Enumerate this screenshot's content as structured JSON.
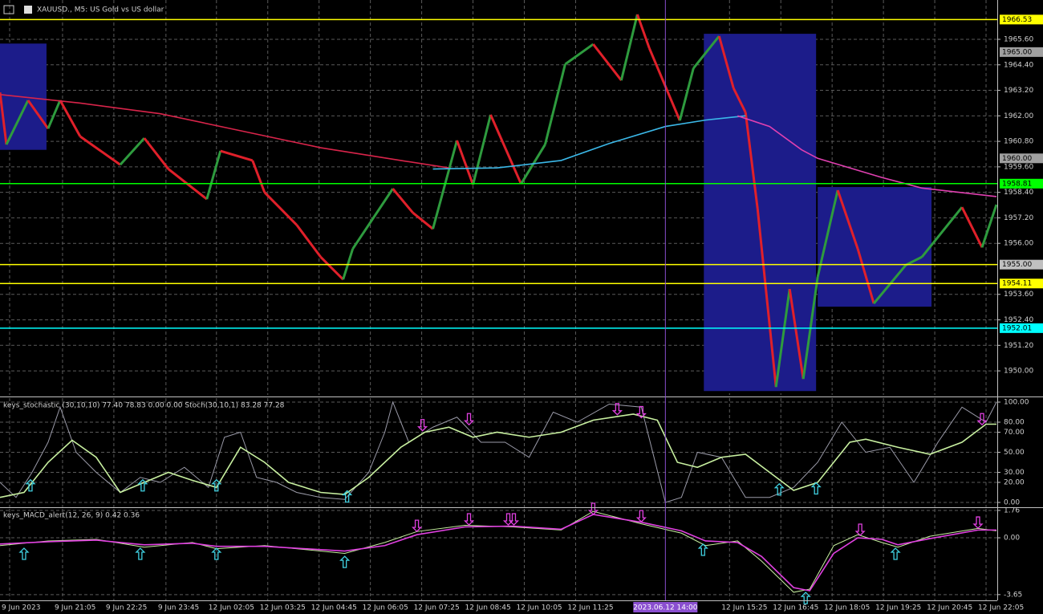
{
  "chart_data": [
    {
      "type": "line",
      "title": "XAUUSD., M5: US Gold vs US dollar",
      "xlim": [
        0,
        311
      ],
      "ylim": [
        1948.87,
        1967.45
      ],
      "grid": true,
      "up_color": "#2e9b3e",
      "down_color": "#e0202a",
      "xticks": [
        {
          "value": 0,
          "label": "9 Jun 2023"
        },
        {
          "value": 16.5,
          "label": "9 Jun 21:05"
        },
        {
          "value": 32.5,
          "label": "9 Jun 22:25"
        },
        {
          "value": 48.75,
          "label": "9 Jun 23:45"
        },
        {
          "value": 64.5,
          "label": "12 Jun 02:05"
        },
        {
          "value": 80.5,
          "label": "12 Jun 03:25"
        },
        {
          "value": 96.5,
          "label": "12 Jun 04:45"
        },
        {
          "value": 112.5,
          "label": "12 Jun 06:05"
        },
        {
          "value": 128.5,
          "label": "12 Jun 07:25"
        },
        {
          "value": 144.5,
          "label": "12 Jun 08:45"
        },
        {
          "value": 160.5,
          "label": "12 Jun 10:05"
        },
        {
          "value": 176.5,
          "label": "12 Jun 11:25"
        },
        {
          "value": 224.5,
          "label": "12 Jun 15:25"
        },
        {
          "value": 240.5,
          "label": "12 Jun 16:45"
        },
        {
          "value": 256.5,
          "label": "12 Jun 18:05"
        },
        {
          "value": 272.5,
          "label": "12 Jun 19:25"
        },
        {
          "value": 288.5,
          "label": "12 Jun 20:45"
        },
        {
          "value": 304.5,
          "label": "12 Jun 22:05"
        }
      ],
      "yticks": [
        {
          "value": 1965.6,
          "label": "1965.60"
        },
        {
          "value": 1964.4,
          "label": "1964.40"
        },
        {
          "value": 1963.2,
          "label": "1963.20"
        },
        {
          "value": 1962,
          "label": "1962.00"
        },
        {
          "value": 1960.8,
          "label": "1960.80"
        },
        {
          "value": 1959.6,
          "label": "1959.60"
        },
        {
          "value": 1958.4,
          "label": "1958.40"
        },
        {
          "value": 1957.2,
          "label": "1957.20"
        },
        {
          "value": 1956,
          "label": "1956.00"
        },
        {
          "value": 1953.6,
          "label": "1953.60"
        },
        {
          "value": 1952.4,
          "label": "1952.40"
        },
        {
          "value": 1951.2,
          "label": "1951.20"
        },
        {
          "value": 1950,
          "label": "1950.00"
        }
      ],
      "levels": [
        {
          "value": 1966.53,
          "label": "1966.53",
          "line_color": "#ffff00",
          "label_color": "#ffff00"
        },
        {
          "value": 1965,
          "label": "1965.00",
          "label_color": "#a0a0a0"
        },
        {
          "value": 1960,
          "label": "1960.00",
          "label_color": "#a0a0a0"
        },
        {
          "value": 1958.81,
          "label": "1958.81",
          "line_color": "#00ff00",
          "label_color": "#00ff00"
        },
        {
          "value": 1955,
          "label": "1955.00",
          "line_color": "#ffff00",
          "label_color": "#c0c0c0"
        },
        {
          "value": 1954.11,
          "label": "1954.11",
          "line_color": "#ffff00",
          "label_color": "#ffff00"
        },
        {
          "value": 1952.01,
          "label": "1952.01",
          "line_color": "#00ffff",
          "label_color": "#00ffff"
        }
      ],
      "zones": [
        {
          "x": [
            0,
            14.5
          ],
          "y": [
            1960.4,
            1965.4
          ]
        },
        {
          "x": [
            219.5,
            254.5
          ],
          "y": [
            1949.05,
            1965.86
          ]
        },
        {
          "x": [
            255,
            290.5
          ],
          "y": [
            1953.02,
            1958.65
          ]
        }
      ],
      "zone_color": "#1c1c8a",
      "cursor": {
        "x": 207.5,
        "label": "2023.06.12 14:00",
        "color": "#8a4fd0"
      },
      "series": [
        {
          "kind": "price",
          "x": [
            0,
            2,
            8.75,
            15,
            18.75,
            25,
            37.5,
            45,
            52.5,
            64.5,
            68.75,
            78.75,
            82.5,
            92.5,
            100,
            107,
            110,
            122.5,
            128.75,
            135,
            142.5,
            147.5,
            153,
            162.5,
            170,
            176.25,
            185,
            193.75,
            198.75,
            202.5,
            212,
            216.25,
            224.25,
            228.75,
            232.5,
            236.25,
            242,
            246.25,
            250.5,
            255,
            261.25,
            267.5,
            272.5,
            282.5,
            287.5,
            300,
            306.25,
            310.75
          ],
          "values": [
            1963.1,
            1960.65,
            1962.73,
            1961.4,
            1962.73,
            1961.03,
            1959.7,
            1960.95,
            1959.5,
            1958.08,
            1960.35,
            1959.9,
            1958.4,
            1956.87,
            1955.36,
            1954.3,
            1955.74,
            1958.57,
            1957.44,
            1956.68,
            1960.84,
            1958.76,
            1962.05,
            1958.8,
            1960.65,
            1964.43,
            1965.37,
            1963.67,
            1966.77,
            1965.18,
            1961.78,
            1964.24,
            1965.75,
            1963.3,
            1962.16,
            1957.63,
            1949.24,
            1953.85,
            1949.62,
            1954.42,
            1958.5,
            1955.74,
            1953.17,
            1954.98,
            1955.36,
            1957.7,
            1955.81,
            1957.82
          ]
        },
        {
          "color": "#d8244a",
          "x": [
            0,
            25,
            50,
            75,
            100,
            125,
            140
          ],
          "values": [
            1963.0,
            1962.6,
            1962.1,
            1961.3,
            1960.5,
            1959.9,
            1959.55
          ]
        },
        {
          "color": "#3bb8e8",
          "x": [
            135,
            155,
            175,
            190,
            207.5,
            220,
            232.5
          ],
          "values": [
            1959.5,
            1959.55,
            1959.9,
            1960.7,
            1961.5,
            1961.8,
            1962.0
          ]
        },
        {
          "color": "#e040b0",
          "x": [
            230,
            240,
            250,
            255,
            275,
            287.5,
            310.75
          ],
          "values": [
            1962.0,
            1961.5,
            1960.4,
            1960.0,
            1959.1,
            1958.6,
            1958.2
          ]
        }
      ]
    },
    {
      "type": "line",
      "title": "keys_stochastic (30,10,10) 77.40 78.83 0.00 0.00 Stoch(30,10,1) 83.28 77.28",
      "ylim": [
        -4.8,
        104
      ],
      "grid": true,
      "yticks": [
        {
          "value": 100,
          "label": "100.00"
        },
        {
          "value": 80,
          "label": "80.00"
        },
        {
          "value": 70,
          "label": "70.00"
        },
        {
          "value": 50,
          "label": "50.00"
        },
        {
          "value": 30,
          "label": "30.00"
        },
        {
          "value": 20,
          "label": "20.00"
        },
        {
          "value": 0,
          "label": "0.00"
        }
      ],
      "series": [
        {
          "color": "#9a9aa8",
          "x": [
            0,
            5,
            10,
            15,
            18.75,
            23.75,
            30,
            37.5,
            43.75,
            50,
            57.5,
            65,
            70,
            75,
            80,
            86.25,
            92.5,
            100,
            107.5,
            115,
            120,
            122.5,
            127.5,
            135,
            142.5,
            150,
            157.5,
            165,
            172.5,
            180,
            190,
            200,
            207.5,
            212.5,
            217.5,
            225,
            232.5,
            240,
            247.5,
            255,
            262.5,
            270,
            277.5,
            285,
            292.5,
            300,
            307.5,
            310.75
          ],
          "values": [
            20,
            5,
            30,
            60,
            95,
            50,
            30,
            10,
            25,
            20,
            35,
            15,
            65,
            70,
            25,
            20,
            10,
            5,
            3,
            30,
            70,
            100,
            60,
            75,
            85,
            60,
            60,
            45,
            90,
            80,
            98,
            95,
            0,
            5,
            50,
            45,
            5,
            5,
            15,
            40,
            80,
            50,
            55,
            20,
            60,
            95,
            80,
            100
          ]
        },
        {
          "color": "#c8f0a0",
          "x": [
            0,
            7.5,
            15,
            22.5,
            30,
            37.5,
            45,
            52.5,
            60,
            67.5,
            75,
            82.5,
            90,
            100,
            107.5,
            115,
            125,
            132.5,
            140,
            147.5,
            155,
            165,
            175,
            185,
            197.5,
            205,
            211.25,
            217.5,
            225,
            232.5,
            240,
            247.5,
            255,
            265,
            270,
            280,
            290,
            300,
            307.5,
            310.75
          ],
          "values": [
            5,
            10,
            40,
            62,
            45,
            10,
            20,
            30,
            22,
            15,
            55,
            40,
            20,
            10,
            8,
            25,
            55,
            70,
            75,
            65,
            70,
            65,
            70,
            82,
            88,
            82,
            40,
            35,
            45,
            48,
            30,
            12,
            20,
            60,
            63,
            55,
            48,
            60,
            78,
            78
          ]
        },
        {
          "marker": "up",
          "color": "#40d0e0",
          "x": [
            9.5,
            44.5,
            67.5,
            108.25,
            243,
            254.5
          ],
          "values": [
            17,
            17,
            17,
            6,
            13,
            14
          ]
        },
        {
          "marker": "down",
          "color": "#e040e0",
          "x": [
            131.75,
            146.25,
            192.5,
            200,
            306.25
          ],
          "values": [
            77,
            83,
            93,
            90,
            83
          ]
        }
      ]
    },
    {
      "type": "line",
      "title": "keys_MACD_alert(12, 26, 9) 0.42 0.36",
      "ylim": [
        -4.02,
        1.86
      ],
      "grid": true,
      "yticks": [
        1.76,
        {
          "value": 0,
          "label": "0.00"
        },
        -3.65
      ],
      "series": [
        {
          "color": "#c8f0a0",
          "x": [
            0,
            15,
            30,
            45,
            60,
            67.5,
            82.5,
            107.5,
            120,
            130,
            145,
            160,
            175,
            185,
            200,
            212.5,
            220,
            230,
            237.5,
            247.5,
            252.5,
            260,
            267.5,
            275,
            280,
            290,
            305,
            310.75
          ],
          "values": [
            -0.5,
            -0.2,
            -0.1,
            -0.6,
            -0.3,
            -0.7,
            -0.5,
            -1.0,
            -0.3,
            0.4,
            0.8,
            0.7,
            0.5,
            1.7,
            0.9,
            0.3,
            -0.5,
            -0.2,
            -1.5,
            -3.5,
            -3.3,
            -0.5,
            0.2,
            -0.3,
            -0.6,
            0.1,
            0.6,
            0.45
          ]
        },
        {
          "color": "#e040e0",
          "x": [
            0,
            15,
            30,
            45,
            60,
            67.5,
            82.5,
            107.5,
            120,
            130,
            145,
            160,
            175,
            185,
            200,
            212.5,
            220,
            230,
            237.5,
            247.5,
            252.5,
            260,
            267.5,
            275,
            280,
            290,
            305,
            310.75
          ],
          "values": [
            -0.4,
            -0.25,
            -0.15,
            -0.45,
            -0.35,
            -0.55,
            -0.55,
            -0.85,
            -0.5,
            0.2,
            0.7,
            0.75,
            0.55,
            1.5,
            1.0,
            0.45,
            -0.2,
            -0.3,
            -1.2,
            -3.2,
            -3.4,
            -1.0,
            0.0,
            -0.1,
            -0.45,
            -0.05,
            0.5,
            0.5
          ]
        },
        {
          "marker": "up",
          "color": "#40d0e0",
          "x": [
            7.5,
            43.75,
            67.5,
            107.5,
            219.25,
            279.25,
            251.25
          ],
          "values": [
            -1.03,
            -1.03,
            -1.03,
            -1.55,
            -0.77,
            -1.03,
            -3.87
          ]
        },
        {
          "marker": "down",
          "color": "#e040e0",
          "x": [
            130,
            146.25,
            158.5,
            160.25,
            185,
            200,
            268.25,
            305
          ],
          "values": [
            0.77,
            1.19,
            1.19,
            1.19,
            1.86,
            1.39,
            0.52,
            0.98
          ]
        }
      ]
    }
  ]
}
